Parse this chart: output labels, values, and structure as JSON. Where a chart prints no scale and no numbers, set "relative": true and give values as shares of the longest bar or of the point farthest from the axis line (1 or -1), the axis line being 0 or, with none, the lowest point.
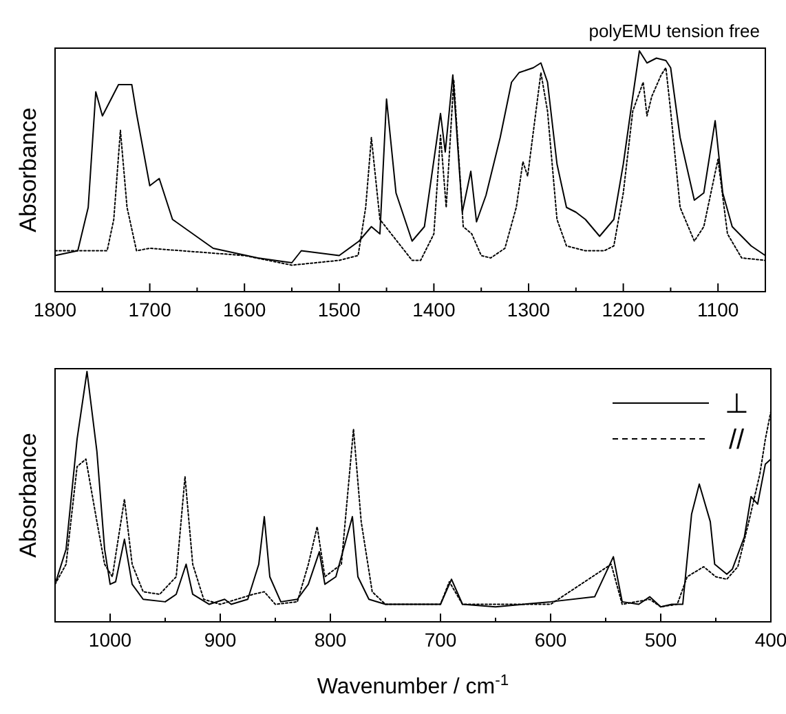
{
  "chart_data": [
    {
      "type": "line",
      "title": "polyEMU tension free",
      "ylabel": "Absorbance",
      "relative": true,
      "legend": false,
      "xlim": [
        1800,
        1050
      ],
      "xticks": [
        1800,
        {
          "value": 1750,
          "label": null
        },
        1700,
        {
          "value": 1650,
          "label": null
        },
        1600,
        {
          "value": 1550,
          "label": null
        },
        1500,
        {
          "value": 1450,
          "label": null
        },
        1400,
        {
          "value": 1350,
          "label": null
        },
        1300,
        {
          "value": 1250,
          "label": null
        },
        1200,
        {
          "value": 1150,
          "label": null
        },
        1100,
        {
          "value": 1050,
          "label": null
        }
      ],
      "series": [
        {
          "color": "#000000",
          "line_style": "solid",
          "x": [
            1800,
            1776,
            1765,
            1757,
            1750,
            1733,
            1719,
            1714,
            1700,
            1690,
            1676,
            1633,
            1586,
            1550,
            1540,
            1500,
            1479,
            1466,
            1457,
            1450,
            1440,
            1423,
            1410,
            1393,
            1388,
            1380,
            1370,
            1361,
            1355,
            1345,
            1330,
            1318,
            1310,
            1295,
            1287,
            1280,
            1270,
            1260,
            1250,
            1240,
            1225,
            1210,
            1200,
            1190,
            1183,
            1175,
            1165,
            1155,
            1150,
            1140,
            1125,
            1115,
            1103,
            1095,
            1085,
            1065,
            1050
          ],
          "values": [
            0.15,
            0.17,
            0.35,
            0.83,
            0.73,
            0.86,
            0.86,
            0.74,
            0.44,
            0.47,
            0.3,
            0.18,
            0.14,
            0.12,
            0.17,
            0.15,
            0.21,
            0.27,
            0.24,
            0.8,
            0.41,
            0.21,
            0.27,
            0.74,
            0.58,
            0.9,
            0.33,
            0.5,
            0.29,
            0.4,
            0.64,
            0.87,
            0.91,
            0.93,
            0.95,
            0.87,
            0.53,
            0.35,
            0.33,
            0.3,
            0.23,
            0.3,
            0.53,
            0.81,
            1,
            0.95,
            0.97,
            0.96,
            0.93,
            0.64,
            0.38,
            0.41,
            0.71,
            0.41,
            0.27,
            0.19,
            0.15
          ]
        },
        {
          "color": "#000000",
          "line_style": "dotted",
          "x": [
            1800,
            1745,
            1738,
            1731,
            1724,
            1714,
            1700,
            1600,
            1550,
            1500,
            1480,
            1472,
            1466,
            1457,
            1443,
            1423,
            1414,
            1400,
            1393,
            1387,
            1379,
            1369,
            1360,
            1350,
            1340,
            1325,
            1313,
            1306,
            1301,
            1287,
            1280,
            1270,
            1260,
            1240,
            1220,
            1210,
            1200,
            1190,
            1179,
            1175,
            1170,
            1160,
            1155,
            1150,
            1140,
            1125,
            1115,
            1100,
            1090,
            1075,
            1050
          ],
          "values": [
            0.17,
            0.17,
            0.3,
            0.67,
            0.35,
            0.17,
            0.18,
            0.15,
            0.11,
            0.13,
            0.15,
            0.35,
            0.64,
            0.3,
            0.23,
            0.13,
            0.13,
            0.24,
            0.65,
            0.35,
            0.88,
            0.27,
            0.24,
            0.15,
            0.14,
            0.18,
            0.35,
            0.54,
            0.48,
            0.91,
            0.75,
            0.3,
            0.19,
            0.17,
            0.17,
            0.19,
            0.41,
            0.75,
            0.87,
            0.73,
            0.81,
            0.9,
            0.93,
            0.75,
            0.35,
            0.21,
            0.27,
            0.55,
            0.24,
            0.14,
            0.13
          ]
        }
      ]
    },
    {
      "type": "line",
      "xlabel": "Wavenumber / cm$^{-1}$",
      "ylabel": "Absorbance",
      "relative": true,
      "legend": "top right",
      "xlim": [
        1050,
        400
      ],
      "xticks": [
        {
          "value": 1050,
          "label": null
        },
        1000,
        {
          "value": 950,
          "label": null
        },
        900,
        {
          "value": 850,
          "label": null
        },
        800,
        {
          "value": 750,
          "label": null
        },
        700,
        {
          "value": 650,
          "label": null
        },
        600,
        {
          "value": 550,
          "label": null
        },
        500,
        {
          "value": 450,
          "label": null
        },
        400
      ],
      "series": [
        {
          "name": "⊥",
          "color": "#000000",
          "line_style": "solid",
          "x": [
            1050,
            1040,
            1030,
            1021,
            1012,
            1005,
            1000,
            995,
            987,
            980,
            970,
            950,
            940,
            931,
            925,
            910,
            896,
            890,
            875,
            865,
            860,
            855,
            845,
            830,
            820,
            810,
            805,
            795,
            780,
            775,
            765,
            750,
            700,
            690,
            680,
            650,
            600,
            560,
            543,
            535,
            520,
            510,
            500,
            490,
            480,
            472,
            465,
            455,
            451,
            440,
            435,
            424,
            418,
            412,
            405,
            400
          ],
          "values": [
            0.15,
            0.29,
            0.73,
            1,
            0.68,
            0.29,
            0.15,
            0.16,
            0.33,
            0.15,
            0.09,
            0.08,
            0.11,
            0.23,
            0.11,
            0.07,
            0.09,
            0.07,
            0.09,
            0.23,
            0.42,
            0.18,
            0.08,
            0.09,
            0.15,
            0.28,
            0.15,
            0.18,
            0.42,
            0.18,
            0.09,
            0.07,
            0.07,
            0.17,
            0.07,
            0.06,
            0.08,
            0.1,
            0.26,
            0.08,
            0.07,
            0.1,
            0.06,
            0.07,
            0.07,
            0.43,
            0.55,
            0.4,
            0.23,
            0.19,
            0.21,
            0.34,
            0.5,
            0.47,
            0.63,
            0.65
          ]
        },
        {
          "name": "//",
          "color": "#000000",
          "line_style": "dotted",
          "x": [
            1050,
            1040,
            1030,
            1022,
            1012,
            1005,
            998,
            987,
            980,
            970,
            955,
            940,
            932,
            925,
            915,
            900,
            870,
            860,
            850,
            830,
            820,
            812,
            805,
            790,
            779,
            772,
            762,
            750,
            700,
            692,
            680,
            600,
            545,
            535,
            510,
            500,
            485,
            476,
            461,
            450,
            440,
            430,
            420,
            410,
            405,
            400
          ],
          "values": [
            0.15,
            0.23,
            0.62,
            0.65,
            0.4,
            0.23,
            0.18,
            0.49,
            0.23,
            0.12,
            0.11,
            0.18,
            0.58,
            0.23,
            0.09,
            0.07,
            0.11,
            0.12,
            0.07,
            0.08,
            0.23,
            0.38,
            0.18,
            0.23,
            0.77,
            0.4,
            0.12,
            0.07,
            0.07,
            0.16,
            0.07,
            0.07,
            0.23,
            0.07,
            0.09,
            0.06,
            0.07,
            0.18,
            0.22,
            0.18,
            0.17,
            0.22,
            0.4,
            0.59,
            0.73,
            0.84
          ]
        }
      ]
    }
  ]
}
